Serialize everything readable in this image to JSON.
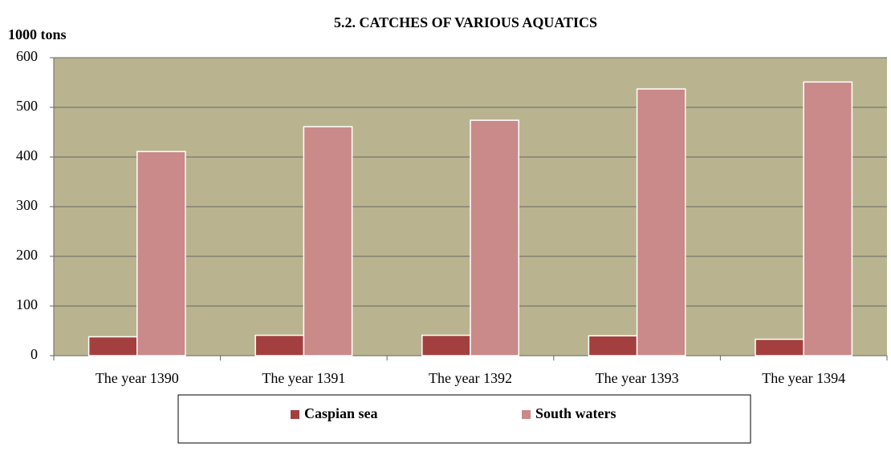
{
  "chart_data": {
    "type": "bar",
    "title": "5.2. CATCHES OF VARIOUS AQUATICS",
    "y_label": "1000 tons",
    "categories": [
      "The year 1390",
      "The year 1391",
      "The year 1392",
      "The year 1393",
      "The year 1394"
    ],
    "series": [
      {
        "name": "Caspian sea",
        "color": "#a3403f",
        "values": [
          38,
          41,
          41,
          40,
          33
        ]
      },
      {
        "name": "South waters",
        "color": "#c98a89",
        "values": [
          411,
          461,
          474,
          537,
          551
        ]
      }
    ],
    "ylim": [
      0,
      600
    ],
    "yticks": [
      0,
      100,
      200,
      300,
      400,
      500,
      600
    ],
    "grid": true,
    "plot_background": "#b9b48f",
    "legend": "bottom"
  }
}
